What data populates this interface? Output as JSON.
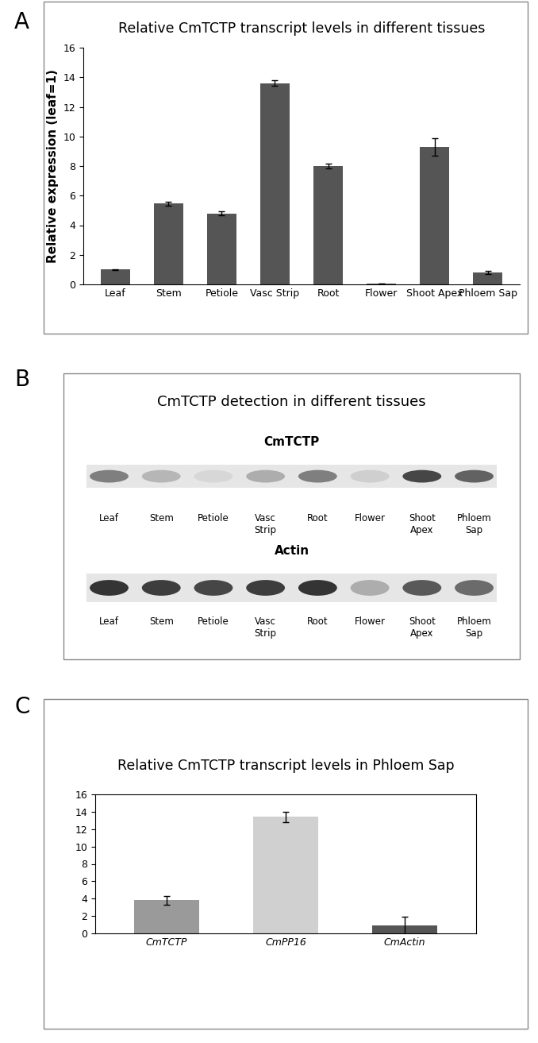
{
  "chart_data": [
    {
      "panel": "A",
      "type": "bar",
      "title": "Relative CmTCTP transcript levels in different tissues",
      "y_label": "Relative expression (leaf=1)",
      "categories": [
        "Leaf",
        "Stem",
        "Petiole",
        "Vasc Strip",
        "Root",
        "Flower",
        "Shoot Apex",
        "Phloem Sap"
      ],
      "values": [
        1.0,
        5.45,
        4.8,
        13.6,
        8.0,
        0.05,
        9.3,
        0.8
      ],
      "errors": [
        0.03,
        0.12,
        0.15,
        0.2,
        0.15,
        0.02,
        0.6,
        0.12
      ],
      "color": "#555555",
      "ylim": [
        0,
        16
      ],
      "yticks": [
        0,
        2,
        4,
        6,
        8,
        10,
        12,
        14,
        16
      ],
      "grid": false
    },
    {
      "panel": "C",
      "type": "bar",
      "title": "Relative CmTCTP transcript levels in Phloem Sap",
      "categories": [
        "CmTCTP",
        "CmPP16",
        "CmActin"
      ],
      "values": [
        3.8,
        13.4,
        0.9
      ],
      "errors": [
        0.5,
        0.6,
        1.0
      ],
      "colors": [
        "#9a9a9a",
        "#d0d0d0",
        "#555555"
      ],
      "ylim": [
        0,
        16
      ],
      "yticks": [
        0,
        2,
        4,
        6,
        8,
        10,
        12,
        14,
        16
      ],
      "grid": false
    }
  ],
  "blot": {
    "panel": "B",
    "title": "CmTCTP detection in different tissues",
    "lanes": [
      "Leaf",
      "Stem",
      "Petiole",
      "Vasc\nStrip",
      "Root",
      "Flower",
      "Shoot\nApex",
      "Phloem\nSap"
    ],
    "blots": [
      {
        "name": "CmTCTP",
        "band_intensity": [
          0.55,
          0.25,
          0.08,
          0.3,
          0.55,
          0.12,
          0.85,
          0.7
        ]
      },
      {
        "name": "Actin",
        "band_intensity": [
          0.95,
          0.9,
          0.85,
          0.9,
          0.95,
          0.3,
          0.75,
          0.65
        ]
      }
    ]
  }
}
